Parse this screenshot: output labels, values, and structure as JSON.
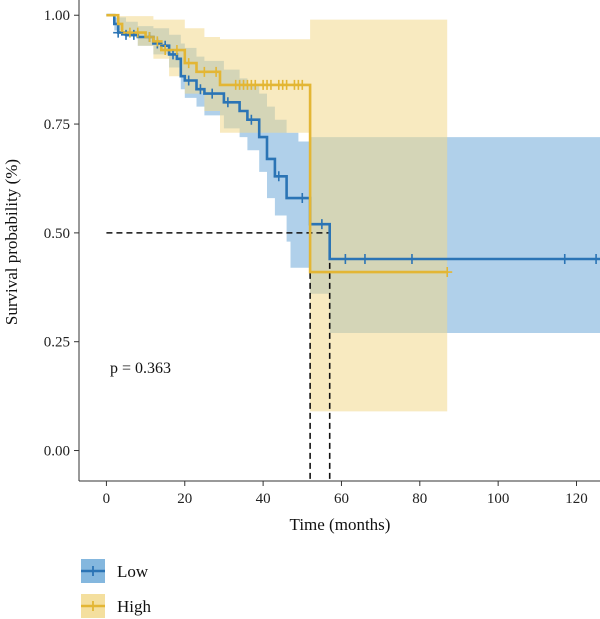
{
  "chart_data": {
    "type": "line",
    "subtype": "kaplan-meier",
    "xlabel": "Time (months)",
    "ylabel": "Survival probability (%)",
    "xlim": [
      -7,
      126
    ],
    "ylim": [
      -0.07,
      1.035
    ],
    "x_ticks": [
      0,
      20,
      40,
      60,
      80,
      100,
      120
    ],
    "y_ticks": [
      0.0,
      0.25,
      0.5,
      0.75,
      1.0
    ],
    "y_tick_labels": [
      "0.00",
      "0.25",
      "0.50",
      "0.75",
      "1.00"
    ],
    "annotation": "p = 0.363",
    "legend_position": "bottom",
    "series": [
      {
        "name": "Low",
        "color": "#2b74b5",
        "band_color": "#6faad8",
        "steps": [
          [
            0,
            1.0
          ],
          [
            2,
            0.98
          ],
          [
            3,
            0.96
          ],
          [
            5,
            0.955
          ],
          [
            8,
            0.95
          ],
          [
            12,
            0.935
          ],
          [
            14,
            0.93
          ],
          [
            16,
            0.91
          ],
          [
            18,
            0.9
          ],
          [
            19,
            0.86
          ],
          [
            20,
            0.85
          ],
          [
            23,
            0.83
          ],
          [
            25,
            0.82
          ],
          [
            30,
            0.8
          ],
          [
            34,
            0.78
          ],
          [
            36,
            0.76
          ],
          [
            39,
            0.72
          ],
          [
            41,
            0.67
          ],
          [
            43,
            0.63
          ],
          [
            46,
            0.58
          ],
          [
            49,
            0.58
          ],
          [
            52,
            0.52
          ],
          [
            57,
            0.44
          ],
          [
            126,
            0.44
          ]
        ],
        "lower": [
          [
            0,
            1.0
          ],
          [
            2,
            0.965
          ],
          [
            5,
            0.95
          ],
          [
            8,
            0.93
          ],
          [
            12,
            0.91
          ],
          [
            16,
            0.88
          ],
          [
            19,
            0.83
          ],
          [
            20,
            0.81
          ],
          [
            23,
            0.79
          ],
          [
            25,
            0.77
          ],
          [
            30,
            0.74
          ],
          [
            34,
            0.72
          ],
          [
            36,
            0.69
          ],
          [
            39,
            0.64
          ],
          [
            41,
            0.58
          ],
          [
            43,
            0.54
          ],
          [
            46,
            0.48
          ],
          [
            47,
            0.42
          ],
          [
            52,
            0.36
          ],
          [
            57,
            0.27
          ],
          [
            126,
            0.27
          ]
        ],
        "upper": [
          [
            0,
            1.0
          ],
          [
            2,
            0.995
          ],
          [
            5,
            0.985
          ],
          [
            8,
            0.975
          ],
          [
            12,
            0.97
          ],
          [
            16,
            0.955
          ],
          [
            19,
            0.935
          ],
          [
            20,
            0.925
          ],
          [
            23,
            0.905
          ],
          [
            25,
            0.895
          ],
          [
            30,
            0.875
          ],
          [
            34,
            0.855
          ],
          [
            36,
            0.84
          ],
          [
            39,
            0.82
          ],
          [
            41,
            0.79
          ],
          [
            43,
            0.76
          ],
          [
            46,
            0.73
          ],
          [
            49,
            0.71
          ],
          [
            52,
            0.72
          ],
          [
            126,
            0.72
          ]
        ],
        "censor_times": [
          3,
          5,
          7,
          11,
          13,
          15,
          17,
          21,
          24,
          27,
          31,
          37,
          44,
          50,
          55,
          61,
          66,
          78,
          117,
          125
        ]
      },
      {
        "name": "High",
        "color": "#e3b634",
        "band_color": "#f2d98d",
        "steps": [
          [
            0,
            1.0
          ],
          [
            3,
            0.98
          ],
          [
            4,
            0.96
          ],
          [
            10,
            0.95
          ],
          [
            12,
            0.94
          ],
          [
            14,
            0.92
          ],
          [
            20,
            0.89
          ],
          [
            23,
            0.87
          ],
          [
            29,
            0.84
          ],
          [
            52,
            0.41
          ],
          [
            87,
            0.41
          ]
        ],
        "lower": [
          [
            0,
            1.0
          ],
          [
            3,
            0.96
          ],
          [
            8,
            0.93
          ],
          [
            12,
            0.9
          ],
          [
            16,
            0.86
          ],
          [
            20,
            0.82
          ],
          [
            25,
            0.78
          ],
          [
            29,
            0.73
          ],
          [
            52,
            0.09
          ],
          [
            87,
            0.09
          ]
        ],
        "upper": [
          [
            0,
            1.0
          ],
          [
            3,
            0.998
          ],
          [
            12,
            0.99
          ],
          [
            20,
            0.97
          ],
          [
            25,
            0.95
          ],
          [
            29,
            0.945
          ],
          [
            52,
            0.99
          ],
          [
            87,
            0.99
          ]
        ],
        "censor_times": [
          6,
          8,
          11,
          13,
          15,
          18,
          21,
          25,
          28,
          33,
          34,
          35,
          36,
          37,
          38,
          40,
          41,
          42,
          44,
          45,
          46,
          48,
          49,
          50,
          87
        ]
      }
    ],
    "median_guides": [
      {
        "x": 52,
        "y": 0.5
      },
      {
        "x": 57,
        "y": 0.5
      }
    ]
  }
}
